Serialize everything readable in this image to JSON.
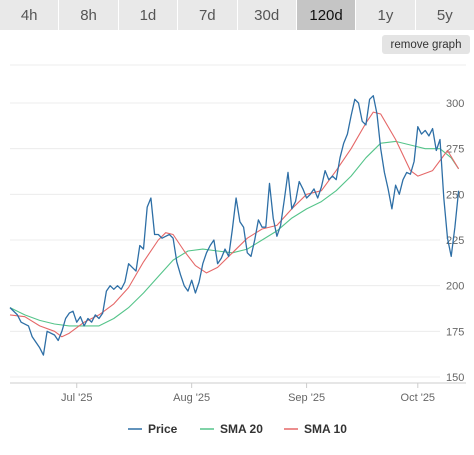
{
  "timeframes": {
    "tabs": [
      "4h",
      "8h",
      "1d",
      "7d",
      "30d",
      "120d",
      "1y",
      "5y"
    ],
    "active": "120d"
  },
  "remove_graph_label": "remove graph",
  "chart_data": {
    "type": "line",
    "y_ticks": [
      150,
      175,
      200,
      225,
      250,
      275,
      300
    ],
    "ylim": [
      150,
      300
    ],
    "x_ticks": [
      "Jul '25",
      "Aug '25",
      "Sep '25",
      "Oct '25"
    ],
    "x_tick_positions": [
      18,
      49,
      80,
      110
    ],
    "x_range": [
      0,
      123
    ],
    "grid": true,
    "legend_position": "bottom",
    "colors": {
      "price": "#2e6fa6",
      "sma20": "#55c48a",
      "sma10": "#e56868"
    },
    "series": [
      {
        "name": "Price",
        "color": "#2e6fa6",
        "points": [
          [
            0,
            188
          ],
          [
            2,
            184
          ],
          [
            3,
            180
          ],
          [
            5,
            178
          ],
          [
            6,
            172
          ],
          [
            8,
            166
          ],
          [
            9,
            162
          ],
          [
            10,
            175
          ],
          [
            12,
            173
          ],
          [
            13,
            170
          ],
          [
            14,
            175
          ],
          [
            15,
            182
          ],
          [
            16,
            185
          ],
          [
            17,
            186
          ],
          [
            18,
            180
          ],
          [
            19,
            183
          ],
          [
            20,
            178
          ],
          [
            21,
            182
          ],
          [
            22,
            180
          ],
          [
            23,
            184
          ],
          [
            24,
            182
          ],
          [
            25,
            185
          ],
          [
            26,
            197
          ],
          [
            27,
            200
          ],
          [
            28,
            198
          ],
          [
            29,
            200
          ],
          [
            30,
            198
          ],
          [
            31,
            202
          ],
          [
            32,
            212
          ],
          [
            33,
            210
          ],
          [
            34,
            208
          ],
          [
            35,
            222
          ],
          [
            36,
            220
          ],
          [
            37,
            243
          ],
          [
            38,
            248
          ],
          [
            39,
            228
          ],
          [
            40,
            228
          ],
          [
            41,
            226
          ],
          [
            42,
            227
          ],
          [
            43,
            228
          ],
          [
            44,
            226
          ],
          [
            45,
            213
          ],
          [
            46,
            206
          ],
          [
            47,
            200
          ],
          [
            48,
            197
          ],
          [
            49,
            203
          ],
          [
            50,
            196
          ],
          [
            51,
            202
          ],
          [
            52,
            212
          ],
          [
            53,
            218
          ],
          [
            54,
            222
          ],
          [
            55,
            225
          ],
          [
            56,
            212
          ],
          [
            57,
            215
          ],
          [
            58,
            220
          ],
          [
            59,
            216
          ],
          [
            60,
            231
          ],
          [
            61,
            248
          ],
          [
            62,
            235
          ],
          [
            63,
            232
          ],
          [
            64,
            218
          ],
          [
            65,
            216
          ],
          [
            66,
            225
          ],
          [
            67,
            236
          ],
          [
            68,
            232
          ],
          [
            69,
            232
          ],
          [
            70,
            256
          ],
          [
            71,
            237
          ],
          [
            72,
            227
          ],
          [
            73,
            233
          ],
          [
            74,
            247
          ],
          [
            75,
            262
          ],
          [
            76,
            242
          ],
          [
            77,
            246
          ],
          [
            78,
            257
          ],
          [
            79,
            253
          ],
          [
            80,
            248
          ],
          [
            81,
            250
          ],
          [
            82,
            253
          ],
          [
            83,
            248
          ],
          [
            84,
            254
          ],
          [
            85,
            263
          ],
          [
            86,
            258
          ],
          [
            87,
            260
          ],
          [
            88,
            258
          ],
          [
            89,
            270
          ],
          [
            90,
            278
          ],
          [
            91,
            283
          ],
          [
            92,
            293
          ],
          [
            93,
            302
          ],
          [
            94,
            300
          ],
          [
            95,
            290
          ],
          [
            96,
            288
          ],
          [
            97,
            302
          ],
          [
            98,
            304
          ],
          [
            99,
            294
          ],
          [
            100,
            275
          ],
          [
            101,
            262
          ],
          [
            102,
            253
          ],
          [
            103,
            242
          ],
          [
            104,
            255
          ],
          [
            105,
            250
          ],
          [
            106,
            258
          ],
          [
            107,
            262
          ],
          [
            108,
            261
          ],
          [
            109,
            268
          ],
          [
            110,
            287
          ],
          [
            111,
            283
          ],
          [
            112,
            285
          ],
          [
            113,
            282
          ],
          [
            114,
            286
          ],
          [
            115,
            274
          ],
          [
            116,
            280
          ],
          [
            117,
            248
          ],
          [
            118,
            226
          ],
          [
            119,
            216
          ],
          [
            120,
            232
          ],
          [
            121,
            252
          ]
        ]
      },
      {
        "name": "SMA 20",
        "color": "#55c48a",
        "points": [
          [
            0,
            188
          ],
          [
            4,
            184
          ],
          [
            8,
            181
          ],
          [
            12,
            179
          ],
          [
            16,
            178
          ],
          [
            20,
            178
          ],
          [
            24,
            178
          ],
          [
            28,
            182
          ],
          [
            32,
            188
          ],
          [
            36,
            196
          ],
          [
            40,
            205
          ],
          [
            44,
            214
          ],
          [
            48,
            219
          ],
          [
            52,
            220
          ],
          [
            56,
            219
          ],
          [
            60,
            218
          ],
          [
            64,
            220
          ],
          [
            68,
            225
          ],
          [
            72,
            230
          ],
          [
            76,
            237
          ],
          [
            80,
            242
          ],
          [
            84,
            246
          ],
          [
            88,
            252
          ],
          [
            92,
            260
          ],
          [
            96,
            270
          ],
          [
            100,
            278
          ],
          [
            104,
            279
          ],
          [
            108,
            277
          ],
          [
            112,
            275
          ],
          [
            116,
            275
          ],
          [
            119,
            270
          ],
          [
            121,
            264
          ]
        ]
      },
      {
        "name": "SMA 10",
        "color": "#e56868",
        "points": [
          [
            0,
            184
          ],
          [
            4,
            183
          ],
          [
            8,
            178
          ],
          [
            12,
            175
          ],
          [
            14,
            172
          ],
          [
            16,
            174
          ],
          [
            20,
            180
          ],
          [
            24,
            184
          ],
          [
            28,
            190
          ],
          [
            32,
            199
          ],
          [
            36,
            213
          ],
          [
            40,
            225
          ],
          [
            42,
            229
          ],
          [
            44,
            228
          ],
          [
            47,
            219
          ],
          [
            50,
            211
          ],
          [
            53,
            207
          ],
          [
            56,
            210
          ],
          [
            60,
            218
          ],
          [
            64,
            226
          ],
          [
            68,
            231
          ],
          [
            72,
            233
          ],
          [
            76,
            242
          ],
          [
            80,
            250
          ],
          [
            84,
            252
          ],
          [
            88,
            263
          ],
          [
            92,
            275
          ],
          [
            96,
            289
          ],
          [
            98,
            295
          ],
          [
            100,
            294
          ],
          [
            104,
            280
          ],
          [
            108,
            263
          ],
          [
            110,
            260
          ],
          [
            114,
            263
          ],
          [
            118,
            274
          ],
          [
            121,
            264
          ]
        ]
      }
    ]
  }
}
